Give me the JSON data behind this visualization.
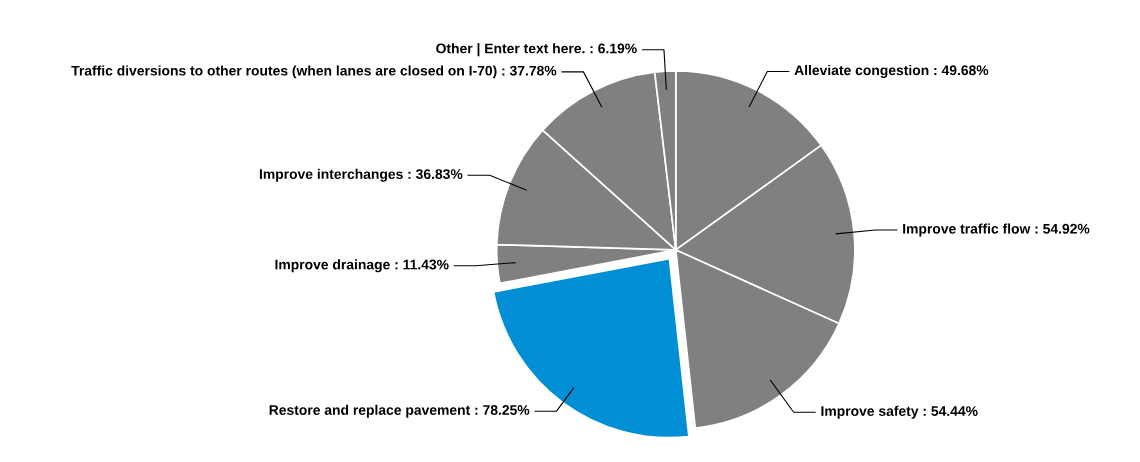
{
  "chart_data": {
    "type": "pie",
    "categories": [
      "Alleviate congestion",
      "Improve traffic flow",
      "Improve safety",
      "Restore and replace pavement",
      "Improve drainage",
      "Improve interchanges",
      "Traffic diversions to other routes (when lanes are closed on I-70)",
      "Other | Enter text here."
    ],
    "values": [
      49.68,
      54.92,
      54.44,
      78.25,
      11.43,
      36.83,
      37.78,
      6.19
    ],
    "value_labels": [
      "49.68%",
      "54.92%",
      "54.44%",
      "78.25%",
      "11.43%",
      "36.83%",
      "37.78%",
      "6.19%"
    ],
    "colors": [
      "#808080",
      "#808080",
      "#808080",
      "#008fd5",
      "#808080",
      "#808080",
      "#808080",
      "#808080"
    ],
    "legend": false
  }
}
